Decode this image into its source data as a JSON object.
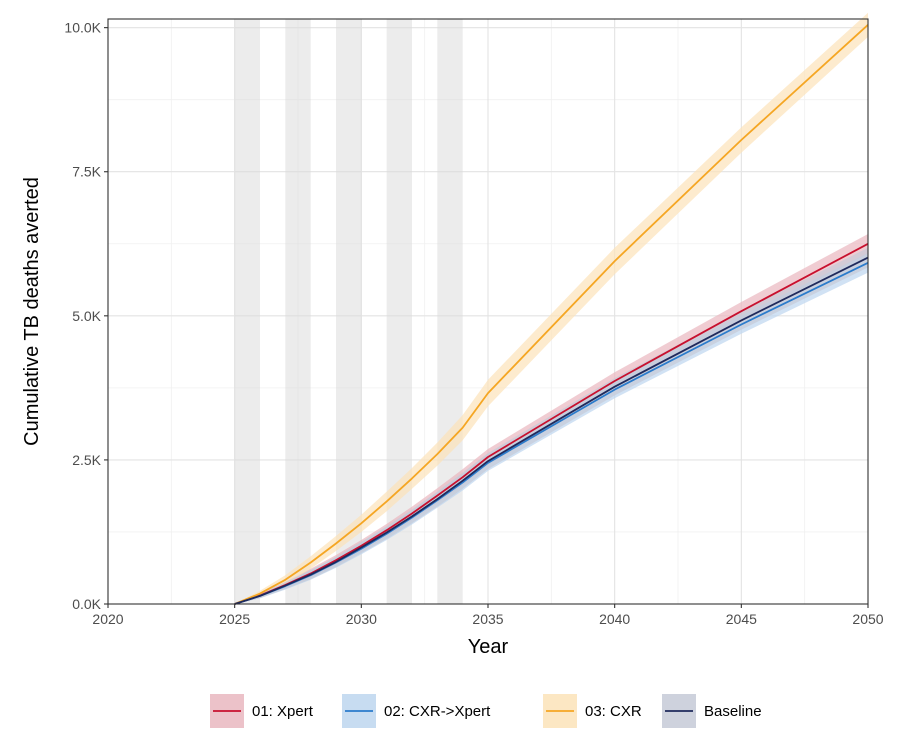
{
  "chart_data": {
    "type": "line",
    "xlabel": "Year",
    "ylabel": "Cumulative TB deaths averted",
    "xlim": [
      2020,
      2050
    ],
    "ylim": [
      0,
      10150
    ],
    "x_ticks": [
      2020,
      2025,
      2030,
      2035,
      2040,
      2045,
      2050
    ],
    "x_tick_labels": [
      "2020",
      "2025",
      "2030",
      "2035",
      "2040",
      "2045",
      "2050"
    ],
    "y_ticks": [
      0,
      2500,
      5000,
      7500,
      10000
    ],
    "y_tick_labels": [
      "0.0K",
      "2.5K",
      "5.0K",
      "7.5K",
      "10.0K"
    ],
    "grid": true,
    "legend_position": "bottom",
    "shaded_year_bands": [
      [
        2025,
        2026
      ],
      [
        2027,
        2028
      ],
      [
        2029,
        2030
      ],
      [
        2031,
        2032
      ],
      [
        2033,
        2034
      ]
    ],
    "x": [
      2025,
      2026,
      2027,
      2028,
      2029,
      2030,
      2031,
      2032,
      2033,
      2034,
      2035,
      2040,
      2045,
      2050
    ],
    "series": [
      {
        "name": "01: Xpert",
        "color": "#C8102E",
        "band_color": "#E9B7BF",
        "values": [
          0,
          150,
          330,
          530,
          760,
          1010,
          1280,
          1570,
          1880,
          2200,
          2550,
          3870,
          5080,
          6250
        ],
        "lower": [
          0,
          110,
          270,
          450,
          670,
          910,
          1170,
          1450,
          1750,
          2060,
          2410,
          3720,
          4920,
          6080
        ],
        "upper": [
          0,
          190,
          390,
          610,
          850,
          1110,
          1390,
          1690,
          2010,
          2340,
          2690,
          4020,
          5240,
          6420
        ]
      },
      {
        "name": "02: CXR->Xpert",
        "color": "#2B7BCB",
        "band_color": "#BDD6EF",
        "values": [
          0,
          140,
          310,
          500,
          720,
          960,
          1220,
          1500,
          1800,
          2110,
          2450,
          3720,
          4850,
          5920
        ],
        "lower": [
          0,
          100,
          250,
          420,
          630,
          860,
          1110,
          1380,
          1670,
          1970,
          2310,
          3570,
          4690,
          5750
        ],
        "upper": [
          0,
          180,
          370,
          580,
          810,
          1060,
          1330,
          1620,
          1930,
          2250,
          2590,
          3870,
          5010,
          6090
        ]
      },
      {
        "name": "03: CXR",
        "color": "#F5A623",
        "band_color": "#FCE3B9",
        "values": [
          0,
          180,
          420,
          720,
          1050,
          1400,
          1780,
          2180,
          2600,
          3060,
          3660,
          5950,
          8050,
          10050
        ],
        "lower": [
          0,
          130,
          340,
          610,
          920,
          1250,
          1610,
          2000,
          2400,
          2840,
          3430,
          5720,
          7830,
          9840
        ],
        "upper": [
          0,
          230,
          500,
          830,
          1180,
          1550,
          1950,
          2360,
          2800,
          3280,
          3890,
          6180,
          8270,
          10260
        ]
      },
      {
        "name": "Baseline",
        "color": "#1F2A5C",
        "band_color": "#C6CAD7",
        "values": [
          0,
          140,
          320,
          510,
          730,
          980,
          1240,
          1520,
          1820,
          2140,
          2480,
          3770,
          4920,
          6010
        ],
        "lower": [
          0,
          100,
          260,
          430,
          640,
          880,
          1130,
          1400,
          1690,
          2000,
          2340,
          3620,
          4760,
          5840
        ],
        "upper": [
          0,
          180,
          380,
          590,
          820,
          1080,
          1350,
          1640,
          1950,
          2280,
          2620,
          3920,
          5080,
          6180
        ]
      }
    ]
  }
}
